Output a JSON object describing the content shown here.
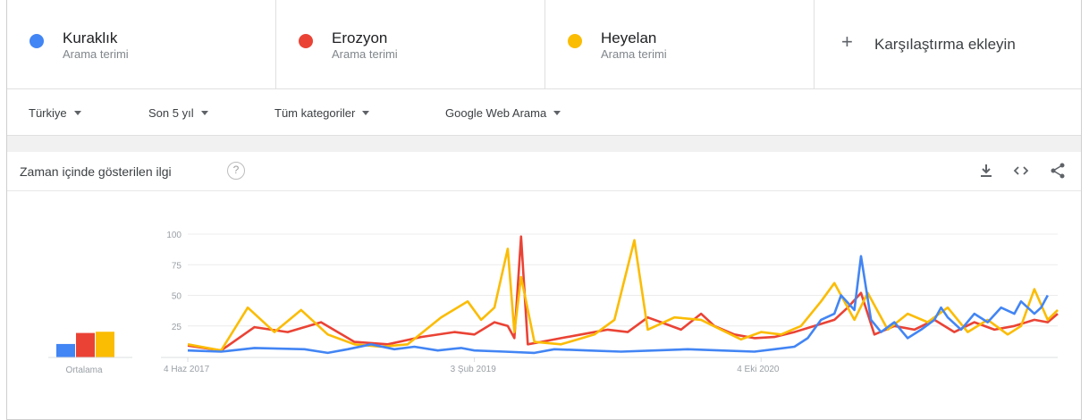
{
  "terms": [
    {
      "name": "Kuraklık",
      "subtitle": "Arama terimi",
      "color": "#4285f4"
    },
    {
      "name": "Erozyon",
      "subtitle": "Arama terimi",
      "color": "#ea4335"
    },
    {
      "name": "Heyelan",
      "subtitle": "Arama terimi",
      "color": "#fbbc04"
    }
  ],
  "add_compare": {
    "icon": "plus-icon",
    "label": "Karşılaştırma ekleyin"
  },
  "filters": {
    "region": "Türkiye",
    "period": "Son 5 yıl",
    "category": "Tüm kategoriler",
    "search_type": "Google Web Arama"
  },
  "card": {
    "title": "Zaman içinde gösterilen ilgi",
    "help_icon": "help-circle-icon",
    "tools": [
      "download-icon",
      "embed-code-icon",
      "share-icon"
    ]
  },
  "chart_data": {
    "type": "line",
    "y_ticks": [
      "100",
      "75",
      "50",
      "25"
    ],
    "ylim": [
      0,
      100
    ],
    "x_tick_labels": [
      "4 Haz 2017",
      "3 Şub 2019",
      "4 Eki 2020"
    ],
    "x_tick_positions": [
      0,
      86,
      172
    ],
    "x_count": 261,
    "grid": true,
    "averages": {
      "label": "Ortalama",
      "values": [
        {
          "name": "Kuraklık",
          "value": 11
        },
        {
          "name": "Erozyon",
          "value": 20
        },
        {
          "name": "Heyelan",
          "value": 21
        }
      ]
    },
    "series": [
      {
        "name": "Kuraklık",
        "color": "#4285f4",
        "points": [
          [
            0,
            5
          ],
          [
            10,
            4
          ],
          [
            20,
            7
          ],
          [
            35,
            6
          ],
          [
            42,
            3
          ],
          [
            48,
            6
          ],
          [
            55,
            10
          ],
          [
            62,
            6
          ],
          [
            68,
            8
          ],
          [
            75,
            5
          ],
          [
            82,
            7
          ],
          [
            86,
            5
          ],
          [
            95,
            4
          ],
          [
            104,
            3
          ],
          [
            110,
            6
          ],
          [
            120,
            5
          ],
          [
            130,
            4
          ],
          [
            140,
            5
          ],
          [
            150,
            6
          ],
          [
            160,
            5
          ],
          [
            170,
            4
          ],
          [
            176,
            6
          ],
          [
            182,
            8
          ],
          [
            186,
            15
          ],
          [
            190,
            30
          ],
          [
            194,
            35
          ],
          [
            196,
            50
          ],
          [
            200,
            38
          ],
          [
            202,
            82
          ],
          [
            205,
            30
          ],
          [
            208,
            20
          ],
          [
            212,
            28
          ],
          [
            216,
            15
          ],
          [
            220,
            22
          ],
          [
            224,
            30
          ],
          [
            226,
            40
          ],
          [
            228,
            32
          ],
          [
            232,
            22
          ],
          [
            236,
            35
          ],
          [
            240,
            28
          ],
          [
            244,
            40
          ],
          [
            248,
            35
          ],
          [
            250,
            45
          ],
          [
            254,
            35
          ],
          [
            256,
            40
          ],
          [
            258,
            50
          ],
          [
            240,
            28
          ],
          [
            250,
            45
          ]
        ]
      },
      {
        "name": "Erozyon",
        "color": "#ea4335",
        "points": [
          [
            0,
            9
          ],
          [
            10,
            5
          ],
          [
            20,
            24
          ],
          [
            30,
            20
          ],
          [
            40,
            28
          ],
          [
            50,
            12
          ],
          [
            60,
            10
          ],
          [
            70,
            16
          ],
          [
            80,
            20
          ],
          [
            86,
            18
          ],
          [
            92,
            28
          ],
          [
            96,
            25
          ],
          [
            98,
            15
          ],
          [
            100,
            98
          ],
          [
            102,
            10
          ],
          [
            106,
            12
          ],
          [
            112,
            15
          ],
          [
            118,
            18
          ],
          [
            126,
            22
          ],
          [
            132,
            20
          ],
          [
            138,
            32
          ],
          [
            142,
            28
          ],
          [
            148,
            22
          ],
          [
            154,
            35
          ],
          [
            158,
            25
          ],
          [
            164,
            18
          ],
          [
            170,
            15
          ],
          [
            176,
            16
          ],
          [
            182,
            20
          ],
          [
            188,
            25
          ],
          [
            194,
            30
          ],
          [
            198,
            40
          ],
          [
            202,
            52
          ],
          [
            206,
            18
          ],
          [
            212,
            25
          ],
          [
            218,
            22
          ],
          [
            224,
            30
          ],
          [
            230,
            20
          ],
          [
            236,
            28
          ],
          [
            242,
            22
          ],
          [
            248,
            25
          ],
          [
            254,
            30
          ],
          [
            258,
            28
          ],
          [
            261,
            35
          ]
        ]
      },
      {
        "name": "Heyelan",
        "color": "#fbbc04",
        "points": [
          [
            0,
            10
          ],
          [
            10,
            5
          ],
          [
            18,
            40
          ],
          [
            26,
            20
          ],
          [
            34,
            38
          ],
          [
            42,
            18
          ],
          [
            50,
            10
          ],
          [
            58,
            8
          ],
          [
            66,
            10
          ],
          [
            76,
            32
          ],
          [
            84,
            45
          ],
          [
            88,
            30
          ],
          [
            92,
            40
          ],
          [
            96,
            88
          ],
          [
            98,
            20
          ],
          [
            100,
            65
          ],
          [
            104,
            12
          ],
          [
            112,
            10
          ],
          [
            122,
            18
          ],
          [
            128,
            30
          ],
          [
            134,
            95
          ],
          [
            138,
            22
          ],
          [
            146,
            32
          ],
          [
            154,
            30
          ],
          [
            160,
            22
          ],
          [
            166,
            14
          ],
          [
            172,
            20
          ],
          [
            178,
            18
          ],
          [
            184,
            25
          ],
          [
            190,
            45
          ],
          [
            194,
            60
          ],
          [
            200,
            30
          ],
          [
            204,
            52
          ],
          [
            210,
            22
          ],
          [
            216,
            35
          ],
          [
            222,
            28
          ],
          [
            228,
            40
          ],
          [
            234,
            20
          ],
          [
            240,
            30
          ],
          [
            246,
            18
          ],
          [
            250,
            25
          ],
          [
            254,
            55
          ],
          [
            258,
            30
          ],
          [
            261,
            38
          ]
        ]
      }
    ]
  }
}
